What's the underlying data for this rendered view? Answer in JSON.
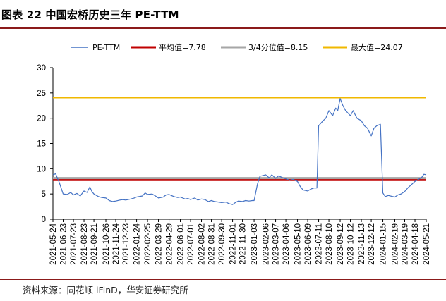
{
  "header": {
    "title": "图表 22  中国宏桥历史三年 PE-TTM"
  },
  "source": {
    "text": "资料来源：同花顺 iFinD，华安证券研究所"
  },
  "colors": {
    "pe": "#4472c4",
    "mean": "#c00000",
    "q3": "#a6a6a6",
    "max": "#f0b800"
  },
  "chart_data": {
    "type": "line",
    "title": "",
    "xlabel": "",
    "ylabel": "",
    "ylim": [
      0,
      30
    ],
    "yticks": [
      "0",
      "5",
      "10",
      "15",
      "20",
      "25",
      "30"
    ],
    "x_ticks": [
      "2021-05-24",
      "2021-06-23",
      "2021-07-23",
      "2021-08-23",
      "2021-09-21",
      "2021-10-26",
      "2021-11-24",
      "2021-12-23",
      "2022-01-24",
      "2022-02-25",
      "2022-03-29",
      "2022-04-29",
      "2022-06-01",
      "2022-07-01",
      "2022-08-02",
      "2022-08-31",
      "2022-09-30",
      "2022-11-01",
      "2022-11-30",
      "2023-01-03",
      "2023-02-06",
      "2023-03-07",
      "2023-04-06",
      "2023-05-10",
      "2023-06-09",
      "2023-07-11",
      "2023-08-10",
      "2023-09-12",
      "2023-10-12",
      "2023-11-13",
      "2023-12-12",
      "2024-01-15",
      "2024-02-19",
      "2024-03-19",
      "2024-04-18",
      "2024-05-21"
    ],
    "legend_position": "top",
    "grid": false,
    "series": [
      {
        "name": "PE-TTM",
        "type": "line",
        "x": [
          "2021-05-24",
          "2021-06-01",
          "2021-06-08",
          "2021-06-11",
          "2021-06-23",
          "2021-07-05",
          "2021-07-15",
          "2021-07-23",
          "2021-08-02",
          "2021-08-12",
          "2021-08-23",
          "2021-09-01",
          "2021-09-09",
          "2021-09-15",
          "2021-09-21",
          "2021-10-04",
          "2021-10-14",
          "2021-10-26",
          "2021-11-05",
          "2021-11-15",
          "2021-11-24",
          "2021-12-06",
          "2021-12-15",
          "2021-12-23",
          "2022-01-07",
          "2022-01-17",
          "2022-01-24",
          "2022-02-10",
          "2022-02-18",
          "2022-02-25",
          "2022-03-10",
          "2022-03-18",
          "2022-03-29",
          "2022-04-12",
          "2022-04-20",
          "2022-04-29",
          "2022-05-13",
          "2022-05-24",
          "2022-06-01",
          "2022-06-15",
          "2022-06-23",
          "2022-07-01",
          "2022-07-13",
          "2022-07-22",
          "2022-08-02",
          "2022-08-12",
          "2022-08-22",
          "2022-08-31",
          "2022-09-09",
          "2022-09-20",
          "2022-09-30",
          "2022-10-12",
          "2022-10-21",
          "2022-11-01",
          "2022-11-09",
          "2022-11-18",
          "2022-11-30",
          "2022-12-09",
          "2022-12-19",
          "2022-12-29",
          "2023-01-03",
          "2023-01-13",
          "2023-01-20",
          "2023-02-06",
          "2023-02-16",
          "2023-02-24",
          "2023-03-07",
          "2023-03-16",
          "2023-03-28",
          "2023-04-06",
          "2023-04-17",
          "2023-04-27",
          "2023-05-10",
          "2023-05-18",
          "2023-05-26",
          "2023-06-09",
          "2023-06-19",
          "2023-06-28",
          "2023-07-06",
          "2023-07-11",
          "2023-07-24",
          "2023-08-01",
          "2023-08-10",
          "2023-08-21",
          "2023-08-30",
          "2023-09-05",
          "2023-09-12",
          "2023-09-20",
          "2023-09-28",
          "2023-10-12",
          "2023-10-20",
          "2023-10-31",
          "2023-11-13",
          "2023-11-22",
          "2023-12-01",
          "2023-12-12",
          "2023-12-20",
          "2023-12-28",
          "2024-01-08",
          "2024-01-15",
          "2024-01-22",
          "2024-01-31",
          "2024-02-19",
          "2024-02-28",
          "2024-03-08",
          "2024-03-19",
          "2024-03-28",
          "2024-04-10",
          "2024-04-18",
          "2024-04-26",
          "2024-05-08",
          "2024-05-14",
          "2024-05-21"
        ],
        "values": [
          8.8,
          9.0,
          7.8,
          7.4,
          5.0,
          4.9,
          5.3,
          4.8,
          5.1,
          4.6,
          5.6,
          5.3,
          6.4,
          5.5,
          5.0,
          4.5,
          4.3,
          4.2,
          3.7,
          3.5,
          3.6,
          3.8,
          3.9,
          3.8,
          4.0,
          4.2,
          4.4,
          4.6,
          5.2,
          4.9,
          5.0,
          4.7,
          4.2,
          4.4,
          4.8,
          4.9,
          4.5,
          4.3,
          4.4,
          4.0,
          4.1,
          3.9,
          4.2,
          3.8,
          4.0,
          3.9,
          3.5,
          3.7,
          3.5,
          3.4,
          3.3,
          3.4,
          3.1,
          2.9,
          3.3,
          3.6,
          3.5,
          3.7,
          3.6,
          3.7,
          3.7,
          7.0,
          8.5,
          8.8,
          8.2,
          8.8,
          8.1,
          8.6,
          8.2,
          8.0,
          7.7,
          7.9,
          7.5,
          6.5,
          5.8,
          5.6,
          6.0,
          6.2,
          6.2,
          18.5,
          19.5,
          20.0,
          21.5,
          20.5,
          22.0,
          21.5,
          23.9,
          22.5,
          21.5,
          20.5,
          21.5,
          20.0,
          19.5,
          18.5,
          18.0,
          16.5,
          18.0,
          18.5,
          18.8,
          5.2,
          4.5,
          4.7,
          4.4,
          4.8,
          5.0,
          5.5,
          6.2,
          7.0,
          7.5,
          7.8,
          8.3,
          8.9,
          8.8
        ]
      },
      {
        "name": "平均值=7.78",
        "type": "hline",
        "value": 7.78
      },
      {
        "name": "3/4分位值=8.15",
        "type": "hline",
        "value": 8.15
      },
      {
        "name": "最大值=24.07",
        "type": "hline",
        "value": 24.07
      }
    ]
  }
}
